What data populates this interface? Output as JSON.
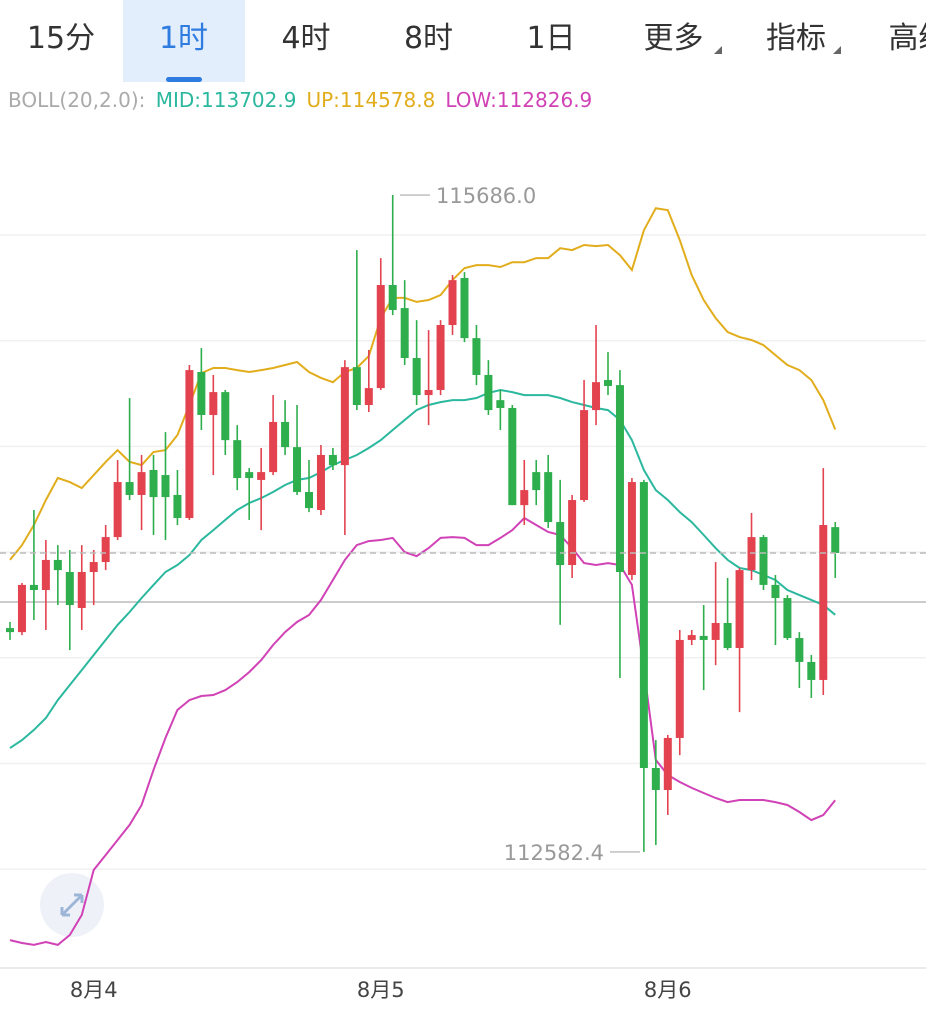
{
  "tabs": [
    "15分",
    "1时",
    "4时",
    "8时",
    "1日",
    "更多",
    "指标",
    "高级"
  ],
  "selected_tab": 1,
  "chart_data": {
    "type": "candlestick",
    "indicator": "BOLL(20,2.0):",
    "up_color": "#e2434f",
    "down_color": "#2eae4c",
    "ylim": [
      112034,
      116206
    ],
    "categories": [
      null,
      null,
      null,
      null,
      null,
      null,
      null,
      "8月4",
      null,
      null,
      null,
      null,
      null,
      null,
      null,
      null,
      null,
      null,
      null,
      null,
      null,
      null,
      null,
      null,
      null,
      null,
      null,
      null,
      null,
      null,
      null,
      "8月5",
      null,
      null,
      null,
      null,
      null,
      null,
      null,
      null,
      null,
      null,
      null,
      null,
      null,
      null,
      null,
      null,
      null,
      null,
      null,
      null,
      null,
      null,
      null,
      "8月6",
      null,
      null,
      null,
      null,
      null,
      null,
      null,
      null,
      null,
      null,
      null,
      null,
      null,
      null
    ],
    "open": [
      113640,
      113621,
      113844,
      113820,
      113962,
      113905,
      113735,
      113905,
      113952,
      114070,
      114330,
      114269,
      114387,
      114363,
      114269,
      114160,
      114850,
      114647,
      114755,
      114528,
      114377,
      114340,
      114377,
      114614,
      114495,
      114283,
      114198,
      114458,
      114410,
      114873,
      114694,
      114774,
      115261,
      115152,
      114916,
      114741,
      114765,
      115072,
      115294,
      115010,
      114836,
      114717,
      114680,
      114221,
      114377,
      114377,
      114141,
      113938,
      114245,
      114670,
      114812,
      114788,
      113891,
      114330,
      112979,
      112875,
      113121,
      113584,
      113603,
      113584,
      113664,
      113546,
      113914,
      114070,
      113844,
      113782,
      113593,
      113480,
      113395,
      114117
    ],
    "high": [
      113669,
      113853,
      114198,
      114056,
      114032,
      114009,
      114032,
      114009,
      114127,
      114434,
      114727,
      114458,
      114458,
      114566,
      114387,
      114883,
      114963,
      114836,
      114765,
      114599,
      114396,
      114491,
      114741,
      114717,
      114694,
      114434,
      114505,
      114491,
      114906,
      115426,
      114954,
      115388,
      115686,
      115284,
      115095,
      115048,
      115095,
      115308,
      115322,
      115072,
      114906,
      114765,
      114694,
      114434,
      114434,
      114458,
      114340,
      114269,
      114812,
      115072,
      114944,
      114859,
      114349,
      114340,
      113111,
      113135,
      113631,
      113631,
      113749,
      113952,
      113877,
      113924,
      114184,
      114080,
      113891,
      113796,
      113621,
      113513,
      114396,
      114141
    ],
    "low": [
      113584,
      113607,
      113678,
      113631,
      113749,
      113536,
      113631,
      113749,
      113914,
      114056,
      114245,
      114103,
      114080,
      114056,
      114127,
      114151,
      114576,
      114363,
      114458,
      114292,
      114151,
      114103,
      114363,
      114458,
      114269,
      114188,
      114174,
      114387,
      114080,
      114670,
      114661,
      114765,
      115119,
      114883,
      114694,
      114599,
      114741,
      115025,
      114991,
      114788,
      114647,
      114576,
      114221,
      114127,
      114221,
      114113,
      113655,
      113877,
      114236,
      114599,
      114741,
      113404,
      113867,
      112582.4,
      112615,
      112757,
      113040,
      113560,
      113347,
      113465,
      113536,
      113243,
      113867,
      113820,
      113560,
      113584,
      113357,
      113310,
      113324,
      113877
    ],
    "close": [
      113621,
      113844,
      113820,
      113962,
      113914,
      113749,
      113905,
      113952,
      114070,
      114330,
      114269,
      114377,
      114259,
      114259,
      114160,
      114859,
      114647,
      114755,
      114528,
      114349,
      114349,
      114377,
      114614,
      114495,
      114283,
      114207,
      114458,
      114410,
      114873,
      114694,
      114774,
      115261,
      115143,
      114916,
      114741,
      114765,
      115072,
      115284,
      115010,
      114836,
      114670,
      114680,
      114221,
      114292,
      114292,
      114141,
      113938,
      114245,
      114670,
      114802,
      114784,
      113905,
      114330,
      112979,
      112875,
      113121,
      113584,
      113607,
      113584,
      113664,
      113546,
      113914,
      114070,
      113844,
      113782,
      113593,
      113480,
      113395,
      114127,
      113995
    ],
    "indicators": [
      {
        "name": "MID:",
        "color": "#2bb89e",
        "values": [
          113073,
          113111,
          113159,
          113215,
          113300,
          113371,
          113442,
          113513,
          113584,
          113655,
          113716,
          113782,
          113844,
          113905,
          113938,
          113985,
          114056,
          114103,
          114151,
          114198,
          114231,
          114254,
          114283,
          114316,
          114340,
          114349,
          114377,
          114410,
          114434,
          114458,
          114491,
          114528,
          114576,
          114623,
          114670,
          114694,
          114708,
          114717,
          114717,
          114727,
          114751,
          114765,
          114755,
          114741,
          114741,
          114741,
          114727,
          114708,
          114694,
          114680,
          114670,
          114623,
          114528,
          114387,
          114292,
          114245,
          114188,
          114141,
          114080,
          114018,
          113962,
          113924,
          113914,
          113891,
          113867,
          113820,
          113796,
          113773,
          113749,
          113702.9
        ]
      },
      {
        "name": "UP:",
        "color": "#e2ad1c",
        "values": [
          113962,
          114032,
          114127,
          114245,
          114349,
          114330,
          114302,
          114363,
          114425,
          114481,
          114425,
          114410,
          114472,
          114481,
          114552,
          114694,
          114845,
          114869,
          114869,
          114859,
          114850,
          114859,
          114869,
          114883,
          114897,
          114850,
          114822,
          114802,
          114850,
          114869,
          114925,
          115105,
          115200,
          115200,
          115181,
          115190,
          115214,
          115284,
          115341,
          115355,
          115355,
          115346,
          115369,
          115369,
          115388,
          115388,
          115435,
          115426,
          115450,
          115445,
          115450,
          115402,
          115332,
          115520,
          115624,
          115615,
          115473,
          115308,
          115190,
          115105,
          115039,
          115015,
          115001,
          114977,
          114930,
          114883,
          114859,
          114812,
          114717,
          114578.8
        ]
      },
      {
        "name": "LOW:",
        "color": "#d042b6",
        "values": [
          112166,
          112152,
          112143,
          112157,
          112143,
          112190,
          112285,
          112497,
          112568,
          112639,
          112710,
          112804,
          112970,
          113121,
          113253,
          113300,
          113319,
          113324,
          113347,
          113385,
          113432,
          113489,
          113560,
          113621,
          113669,
          113702,
          113773,
          113867,
          113962,
          114032,
          114051,
          114056,
          114066,
          113999,
          113980,
          114018,
          114066,
          114070,
          114066,
          114032,
          114032,
          114066,
          114103,
          114160,
          114127,
          114094,
          114080,
          114018,
          113947,
          113938,
          113947,
          113938,
          113844,
          113442,
          113017,
          112946,
          112913,
          112885,
          112861,
          112837,
          112818,
          112828,
          112828,
          112828,
          112818,
          112804,
          112771,
          112733,
          112757,
          112826.9
        ]
      }
    ],
    "max_label": {
      "value": 115686,
      "label": "115686.0"
    },
    "min_label": 112582.4
  }
}
